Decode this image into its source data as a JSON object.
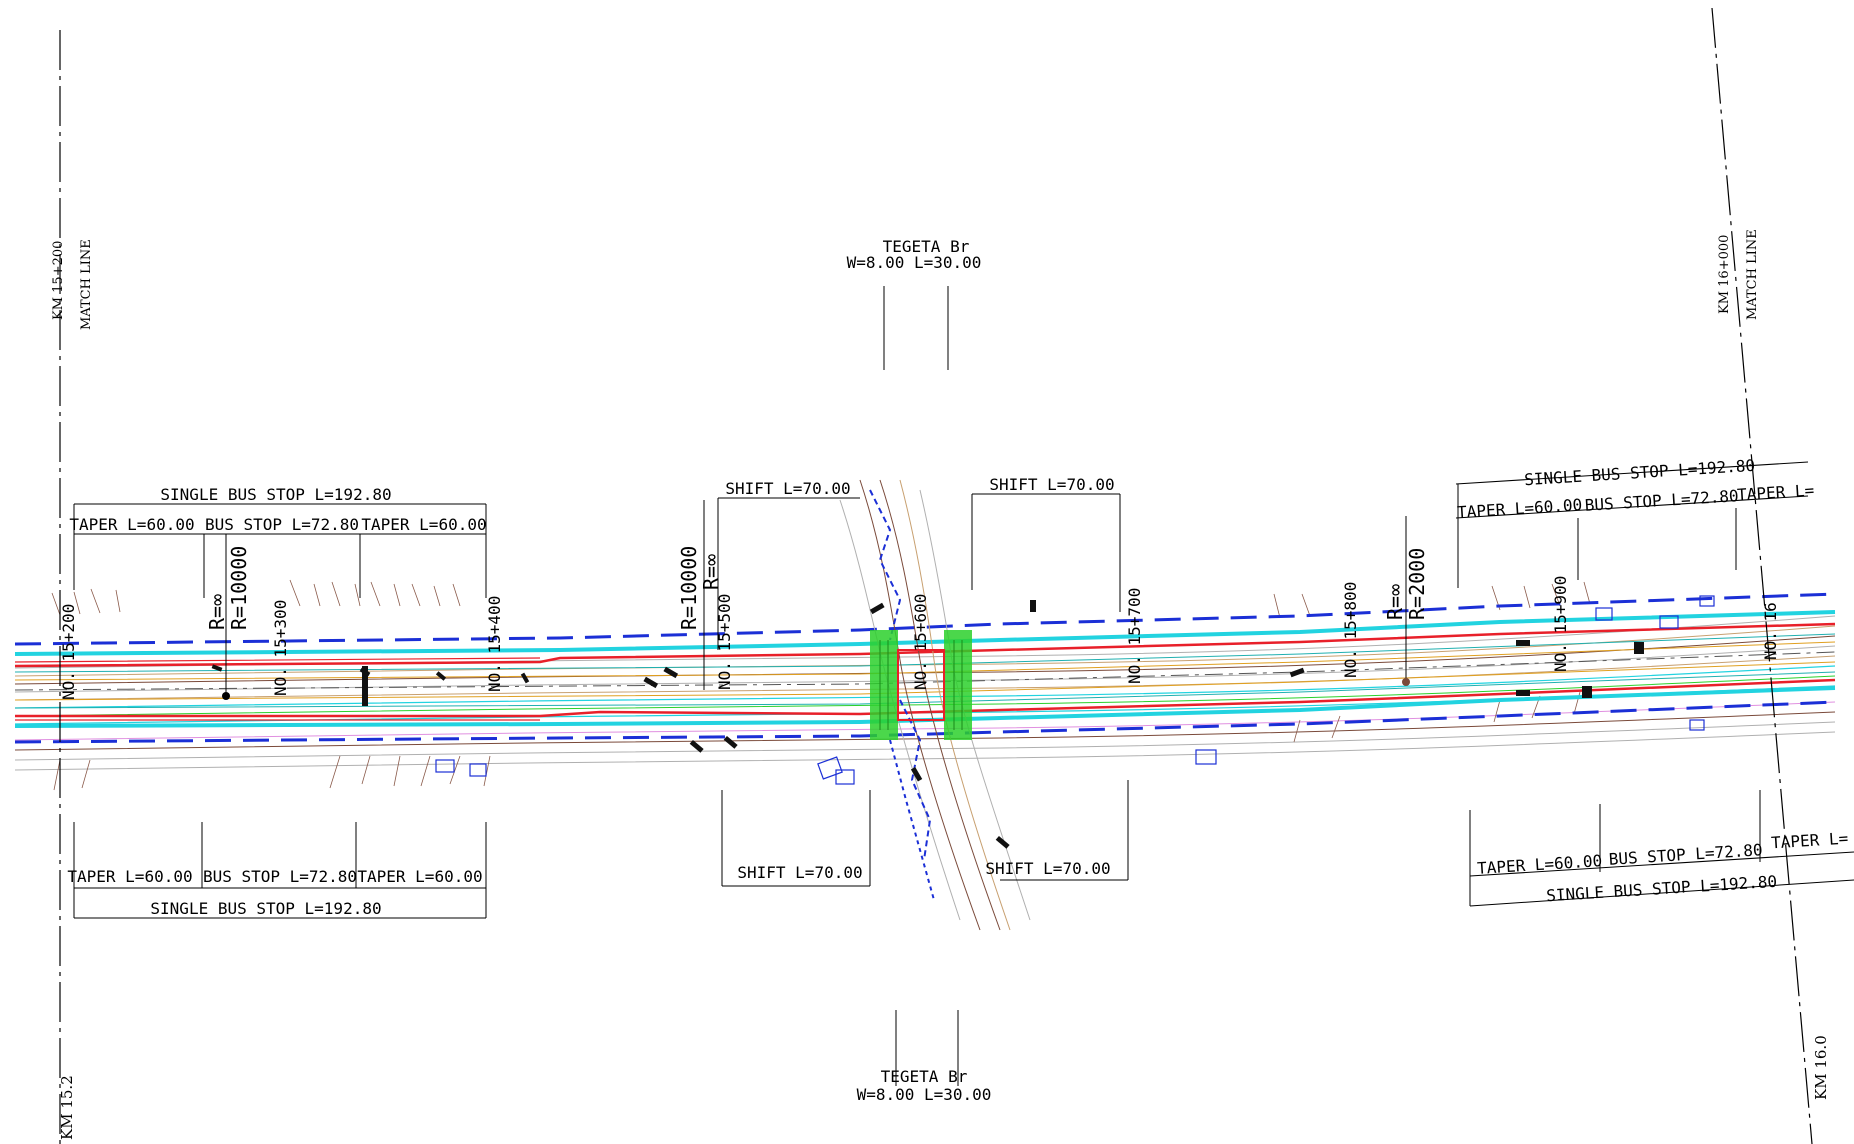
{
  "match_lines": {
    "left_top_km": "KM 15+200",
    "left_top_label": "MATCH LINE",
    "left_bottom_km": "KM 15.2",
    "right_top_km": "KM 16+000",
    "right_top_label": "MATCH LINE",
    "right_bottom_km": "KM 16.0"
  },
  "bridge": {
    "top_name": "TEGETA Br",
    "top_dims": "W=8.00 L=30.00",
    "bottom_name": "TEGETA Br",
    "bottom_dims": "W=8.00 L=30.00"
  },
  "bus_stops": {
    "left_top": {
      "total": "SINGLE BUS STOP L=192.80",
      "taper_in": "TAPER L=60.00",
      "stop": "BUS STOP L=72.80",
      "taper_out": "TAPER L=60.00"
    },
    "left_bottom": {
      "total": "SINGLE BUS STOP L=192.80",
      "taper_in": "TAPER L=60.00",
      "stop": "BUS STOP L=72.80",
      "taper_out": "TAPER L=60.00"
    },
    "right_top": {
      "total": "SINGLE BUS STOP L=192.80",
      "taper_in": "TAPER L=60.00",
      "stop": "BUS STOP L=72.80",
      "taper_out": "TAPER L="
    },
    "right_bottom": {
      "total": "SINGLE BUS STOP L=192.80",
      "taper_in": "TAPER L=60.00",
      "stop": "BUS STOP L=72.80",
      "taper_out": "TAPER L="
    }
  },
  "shifts": {
    "top_left": "SHIFT L=70.00",
    "top_right": "SHIFT L=70.00",
    "bottom_left": "SHIFT L=70.00",
    "bottom_right": "SHIFT L=70.00"
  },
  "curves": {
    "c1_r_inf": "R=∞",
    "c1_r": "R=10000",
    "c2_r": "R=10000",
    "c2_r_inf": "R=∞",
    "c3_r_inf": "R=∞",
    "c3_r": "R=2000"
  },
  "stations": {
    "s15_200": "NO. 15+200",
    "s15_300": "NO. 15+300",
    "s15_400": "NO. 15+400",
    "s15_500": "NO. 15+500",
    "s15_600": "NO. 15+600",
    "s15_700": "NO. 15+700",
    "s15_800": "NO. 15+800",
    "s15_900": "NO. 15+900",
    "s16": "NO. 16"
  },
  "colors": {
    "road_edge": "#e8202a",
    "row_dash": "#1b2fd6",
    "cyan_contour": "#22d3e0",
    "green_slope": "#2bd02b",
    "contour_brown": "#7a4a3a",
    "centerline": "#555555"
  }
}
